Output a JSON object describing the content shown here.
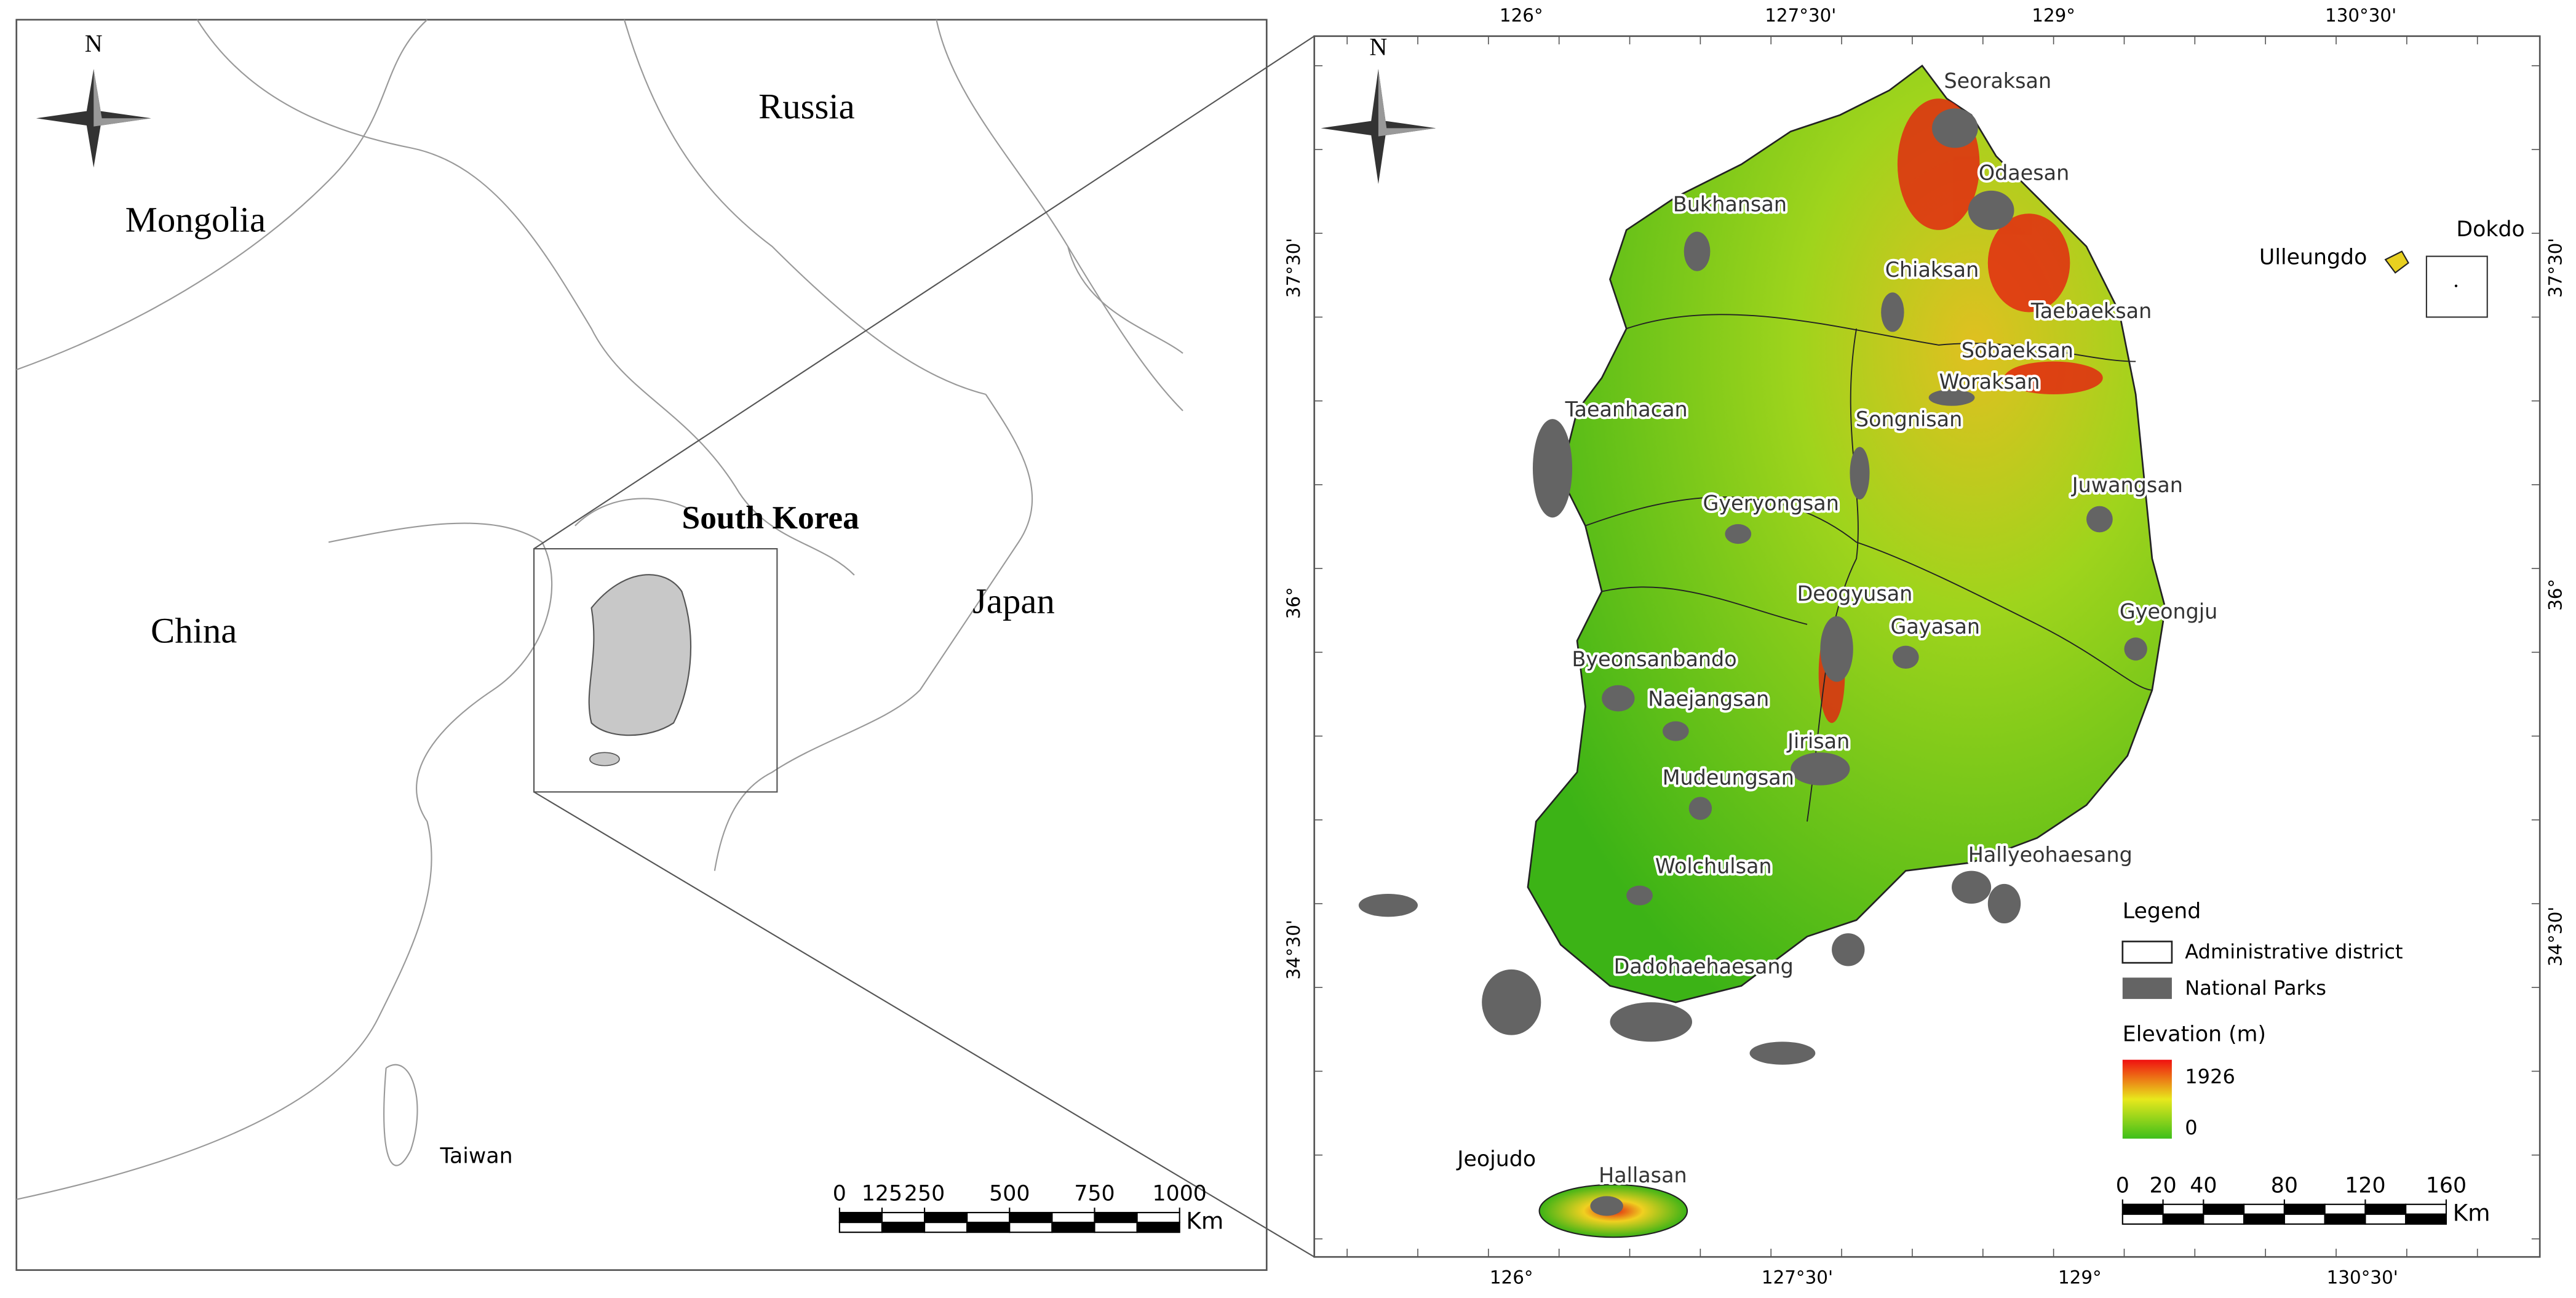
{
  "left_map": {
    "north": "N",
    "labels": [
      "Russia",
      "Mongolia",
      "China",
      "Japan",
      "South Korea",
      "Taiwan"
    ],
    "scale_bar": {
      "ticks": [
        0,
        125,
        250,
        500,
        750,
        1000
      ],
      "unit": "Km"
    }
  },
  "right_map": {
    "north": "N",
    "top_ticks": [
      "126°",
      "127°30'",
      "129°",
      "130°30'"
    ],
    "bottom_ticks": [
      "126°",
      "127°30'",
      "129°",
      "130°30'"
    ],
    "left_ticks": [
      "37°30'",
      "36°",
      "34°30'"
    ],
    "right_ticks": [
      "37°30'",
      "36°",
      "34°30'"
    ],
    "parks": [
      "Seoraksan",
      "Odaesan",
      "Bukhansan",
      "Chiaksan",
      "Taebaeksan",
      "Sobaeksan",
      "Woraksan",
      "Taeanhacan",
      "Songnisan",
      "Juwangsan",
      "Gyeryongsan",
      "Deogyusan",
      "Gayasan",
      "Gyeongju",
      "Byeonsanbando",
      "Naejangsan",
      "Jirisan",
      "Mudeungsan",
      "Hallyeohaesang",
      "Wolchulsan",
      "Dadohaehaesang",
      "Hallasan"
    ],
    "places": [
      "Jeojudo",
      "Ulleungdo",
      "Dokdo"
    ],
    "legend": {
      "title": "Legend",
      "items": [
        "Administrative district",
        "National Parks"
      ],
      "elevation_title": "Elevation (m)",
      "max": 1926,
      "min": 0
    },
    "scale_bar": {
      "ticks": [
        0,
        20,
        40,
        80,
        120,
        160
      ],
      "unit": "Km"
    }
  }
}
